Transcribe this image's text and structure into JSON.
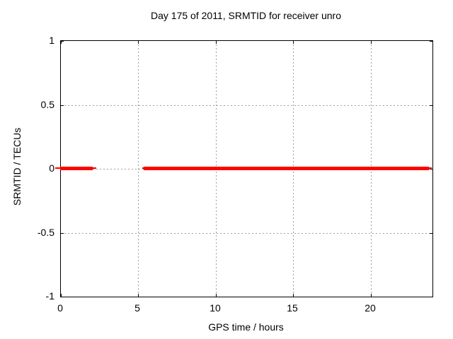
{
  "chart_data": {
    "type": "line",
    "title": "Day 175 of 2011, SRMTID for receiver unro",
    "xlabel": "GPS time / hours",
    "ylabel": "SRMTID / TECUs",
    "xlim": [
      0,
      24
    ],
    "ylim": [
      -1,
      1
    ],
    "xticks": [
      0,
      5,
      10,
      15,
      20
    ],
    "xtick_labels": [
      "0",
      "5",
      "10",
      "15",
      "20"
    ],
    "yticks": [
      1,
      0.5,
      0,
      -0.5,
      -1
    ],
    "ytick_labels": [
      "1",
      "0.5",
      "0",
      "-0.5",
      "-1"
    ],
    "grid": true,
    "grid_style": "dashed-gray",
    "legend": "none",
    "series": [
      {
        "name": "SRMTID",
        "color": "#ff0000",
        "style": "thick horizontal line at y=0 with gap",
        "segments": [
          {
            "y": 0,
            "x_start": -0.3,
            "x_end": 2.35,
            "x_thick_start": 0.0,
            "x_thick_end": 2.1
          },
          {
            "y": 0,
            "x_start": 5.3,
            "x_end": 24.0,
            "x_thick_start": 5.4,
            "x_thick_end": 23.8
          }
        ]
      }
    ]
  },
  "colors": {
    "background": "#ffffff",
    "border": "#000000",
    "grid": "#9e9e9e",
    "text": "#000000",
    "series": "#ff0000"
  }
}
